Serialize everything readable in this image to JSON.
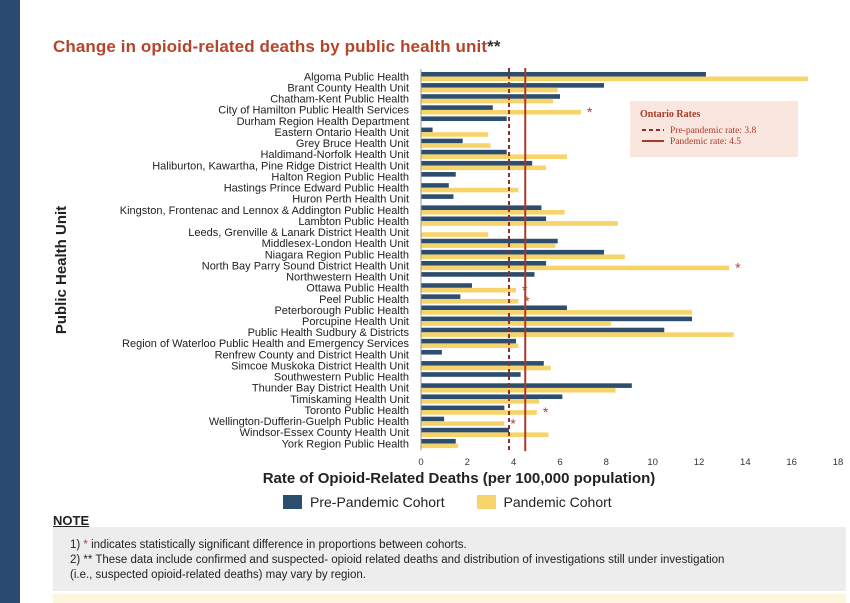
{
  "title": "Change in opioid-related deaths by public health unit",
  "title_mark": "**",
  "chart_data": {
    "type": "bar",
    "orientation": "horizontal",
    "xlabel": "Rate of Opioid-Related Deaths (per 100,000 population)",
    "ylabel": "Public Health Unit",
    "xlim": [
      0,
      18
    ],
    "xticks": [
      0,
      2,
      4,
      6,
      8,
      10,
      12,
      14,
      16,
      18
    ],
    "categories": [
      "Algoma Public Health",
      "Brant County Health Unit",
      "Chatham-Kent Public Health",
      "City of Hamilton Public Health Services",
      "Durham Region Health Department",
      "Eastern Ontario Health Unit",
      "Grey Bruce Health Unit",
      "Haldimand-Norfolk Health Unit",
      "Haliburton, Kawartha, Pine Ridge District Health Unit",
      "Halton Region Public Health",
      "Hastings Prince Edward Public Health",
      "Huron Perth Health Unit",
      "Kingston, Frontenac and Lennox & Addington Public Health",
      "Lambton Public Health",
      "Leeds, Grenville & Lanark District Health Unit",
      "Middlesex-London Health Unit",
      "Niagara Region Public Health",
      "North Bay Parry Sound District Health Unit",
      "Northwestern Health Unit",
      "Ottawa Public Health",
      "Peel Public Health",
      "Peterborough Public Health",
      "Porcupine Health Unit",
      "Public Health Sudbury & Districts",
      "Region of Waterloo Public Health and Emergency Services",
      "Renfrew County and District Health Unit",
      "Simcoe Muskoka District Health Unit",
      "Southwestern Public Health",
      "Thunder Bay District Health Unit",
      "Timiskaming Health Unit",
      "Toronto Public Health",
      "Wellington-Dufferin-Guelph Public Health",
      "Windsor-Essex County Health Unit",
      "York Region Public Health"
    ],
    "series": [
      {
        "name": "Pre-Pandemic Cohort",
        "color": "#2d4d6e",
        "values": [
          12.3,
          7.9,
          6.0,
          3.1,
          3.7,
          0.5,
          1.8,
          3.7,
          4.8,
          1.5,
          1.2,
          1.4,
          5.2,
          5.4,
          0.0,
          5.9,
          7.9,
          5.4,
          4.9,
          2.2,
          1.7,
          6.3,
          11.7,
          10.5,
          4.1,
          0.9,
          5.3,
          4.3,
          9.1,
          6.1,
          3.6,
          1.0,
          3.8,
          1.5
        ]
      },
      {
        "name": "Pandemic Cohort",
        "color": "#f6d46a",
        "values": [
          16.7,
          5.9,
          5.7,
          6.9,
          0.0,
          2.9,
          3.0,
          6.3,
          5.4,
          0.0,
          4.2,
          0.0,
          6.2,
          8.5,
          2.9,
          5.8,
          8.8,
          13.3,
          0.0,
          4.1,
          4.2,
          11.7,
          8.2,
          13.5,
          4.2,
          0.0,
          5.6,
          0.0,
          8.4,
          5.1,
          5.0,
          3.6,
          5.5,
          1.6
        ]
      }
    ],
    "significant_pandemic": [
      "City of Hamilton Public Health Services",
      "North Bay Parry Sound District Health Unit",
      "Ottawa Public Health",
      "Peel Public Health",
      "Toronto Public Health",
      "Wellington-Dufferin-Guelph Public Health"
    ],
    "significance_marker": "*",
    "reference_lines": [
      {
        "label": "Pre-pandemic rate: 3.8",
        "value": 3.8,
        "style": "dashed",
        "color": "#8b2e2e"
      },
      {
        "label": "Pandemic rate: 4.5",
        "value": 4.5,
        "style": "solid",
        "color": "#a83a2a"
      }
    ],
    "reference_legend_title": "Ontario Rates",
    "grid": false,
    "legend_position": "bottom"
  },
  "note": {
    "heading": "NOTE",
    "line1_prefix": "1) ",
    "line1_star": "*",
    "line1_text": " indicates statistically significant difference in proportions between cohorts.",
    "line2": "2) ** These data include confirmed and suspected- opioid related deaths and distribution of investigations still under investigation",
    "line3": "(i.e., suspected opioid-related deaths) may vary by region."
  },
  "colors": {
    "left_bar": "#2b4a6f",
    "title": "#b5452a",
    "note_background": "#ededed",
    "ref_legend_background": "#f9e6df"
  }
}
